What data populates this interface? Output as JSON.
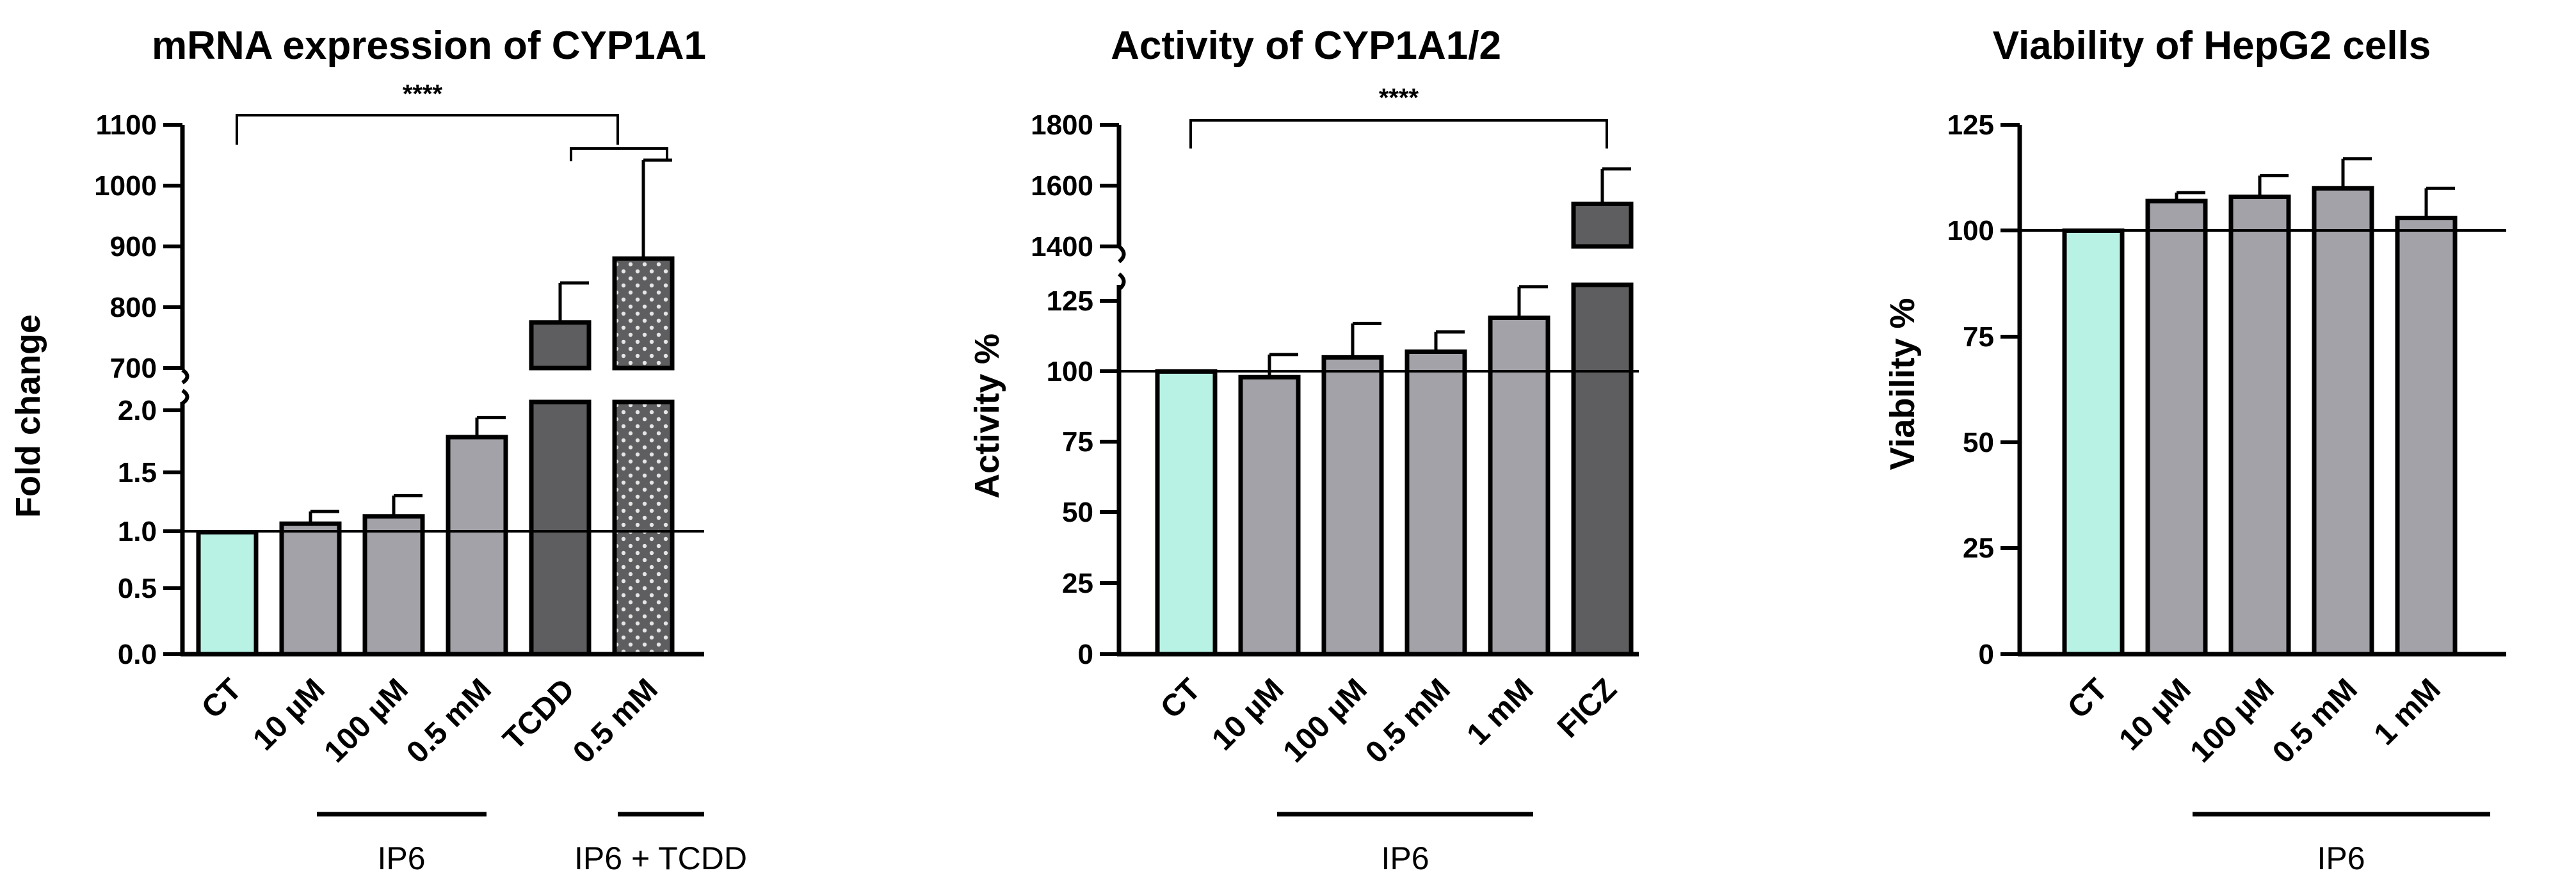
{
  "chart_data": [
    {
      "type": "bar",
      "title": "mRNA expression of CYP1A1",
      "ylabel": "Fold change",
      "xlabel": "",
      "categories": [
        "CT",
        "10 µM",
        "100 µM",
        "0.5 mM",
        "TCDD",
        "0.5 mM"
      ],
      "values": [
        1.0,
        1.07,
        1.13,
        1.78,
        775,
        880
      ],
      "errors": [
        0,
        0.1,
        0.17,
        0.16,
        65,
        162
      ],
      "bar_colors": [
        "#b8f2e4",
        "#a2a2a8",
        "#a2a2a8",
        "#a2a2a8",
        "#5e5e60",
        "#5e5e60"
      ],
      "bar_pattern": [
        "",
        "",
        "",
        "",
        "",
        "dots"
      ],
      "ylim_lower": [
        0,
        2.0
      ],
      "ylim_upper": [
        700,
        1100
      ],
      "yticks_lower": [
        "0.0",
        "0.5",
        "1.0",
        "1.5",
        "2.0"
      ],
      "yticks_upper": [
        "700",
        "800",
        "900",
        "1000",
        "1100"
      ],
      "reference_line": 1.0,
      "axis_break": true,
      "groups": [
        {
          "label": "IP6",
          "categories": [
            "10 µM",
            "100 µM",
            "0.5 mM"
          ]
        },
        {
          "label": "IP6 + TCDD",
          "categories": [
            "0.5 mM"
          ]
        }
      ],
      "significance": [
        {
          "from": "CT",
          "to": "TCDD vs 0.5 mM",
          "label": "****"
        }
      ]
    },
    {
      "type": "bar",
      "title": "Activity of CYP1A1/2",
      "ylabel": "Activity %",
      "xlabel": "",
      "categories": [
        "CT",
        "10 µM",
        "100 µM",
        "0.5 mM",
        "1 mM",
        "FICZ"
      ],
      "values": [
        100,
        98,
        105,
        107,
        119,
        1540
      ],
      "errors": [
        0,
        8,
        12,
        7,
        11,
        115
      ],
      "bar_colors": [
        "#b8f2e4",
        "#a2a2a8",
        "#a2a2a8",
        "#a2a2a8",
        "#a2a2a8",
        "#5e5e60"
      ],
      "ylim_lower": [
        0,
        130
      ],
      "ylim_upper": [
        1400,
        1800
      ],
      "yticks_lower": [
        "0",
        "25",
        "50",
        "75",
        "100",
        "125"
      ],
      "yticks_upper": [
        "1400",
        "1600",
        "1800"
      ],
      "reference_line": 100,
      "axis_break": true,
      "groups": [
        {
          "label": "IP6",
          "categories": [
            "10 µM",
            "100 µM",
            "0.5 mM",
            "1 mM"
          ]
        }
      ],
      "significance": [
        {
          "from": "CT",
          "to": "FICZ",
          "label": "****"
        }
      ]
    },
    {
      "type": "bar",
      "title": "Viability of HepG2 cells",
      "ylabel": "Viability %",
      "xlabel": "",
      "categories": [
        "CT",
        "10 µM",
        "100 µM",
        "0.5 mM",
        "1 mM"
      ],
      "values": [
        100,
        107,
        108,
        110,
        103
      ],
      "errors": [
        0,
        2,
        5,
        7,
        7
      ],
      "bar_colors": [
        "#b8f2e4",
        "#a2a2a8",
        "#a2a2a8",
        "#a2a2a8",
        "#a2a2a8"
      ],
      "ylim": [
        0,
        125
      ],
      "yticks": [
        "0",
        "25",
        "50",
        "75",
        "100",
        "125"
      ],
      "reference_line": 100,
      "axis_break": false,
      "groups": [
        {
          "label": "IP6",
          "categories": [
            "10 µM",
            "100 µM",
            "0.5 mM",
            "1 mM"
          ]
        }
      ]
    }
  ]
}
